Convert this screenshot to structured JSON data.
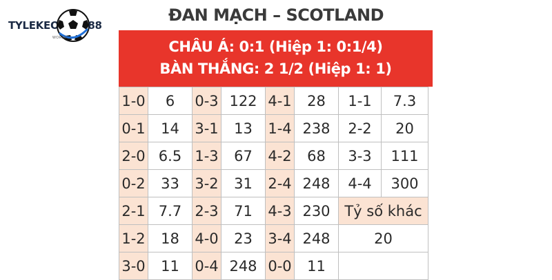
{
  "logo": {
    "left": "TYLEKEO",
    "right": "88",
    "sub": "WORLD"
  },
  "match_title": "ĐAN MẠCH – SCOTLAND",
  "banner": {
    "line1": "CHÂU Á: 0:1 (Hiệp 1: 0:1/4)",
    "line2": "BÀN THẮNG: 2 1/2 (Hiệp 1: 1)"
  },
  "colors": {
    "banner": "#e8352b",
    "score_cell": "#fbe3d3",
    "grid": "#bfbfbf"
  },
  "rows": [
    {
      "a": [
        "1-0",
        "6"
      ],
      "b": [
        "0-3",
        "122"
      ],
      "c": [
        "4-1",
        "28"
      ],
      "d": [
        "1-1",
        "7.3"
      ]
    },
    {
      "a": [
        "0-1",
        "14"
      ],
      "b": [
        "3-1",
        "13"
      ],
      "c": [
        "1-4",
        "238"
      ],
      "d": [
        "2-2",
        "20"
      ]
    },
    {
      "a": [
        "2-0",
        "6.5"
      ],
      "b": [
        "1-3",
        "67"
      ],
      "c": [
        "4-2",
        "68"
      ],
      "d": [
        "3-3",
        "111"
      ]
    },
    {
      "a": [
        "0-2",
        "33"
      ],
      "b": [
        "3-2",
        "31"
      ],
      "c": [
        "2-4",
        "248"
      ],
      "d": [
        "4-4",
        "300"
      ]
    },
    {
      "a": [
        "2-1",
        "7.7"
      ],
      "b": [
        "2-3",
        "71"
      ],
      "c": [
        "4-3",
        "230"
      ]
    },
    {
      "a": [
        "1-2",
        "18"
      ],
      "b": [
        "4-0",
        "23"
      ],
      "c": [
        "3-4",
        "248"
      ]
    },
    {
      "a": [
        "3-0",
        "11"
      ],
      "b": [
        "0-4",
        "248"
      ],
      "c": [
        "0-0",
        "11"
      ]
    }
  ],
  "other_scores": {
    "label": "Tỷ số khác",
    "value": "20"
  }
}
